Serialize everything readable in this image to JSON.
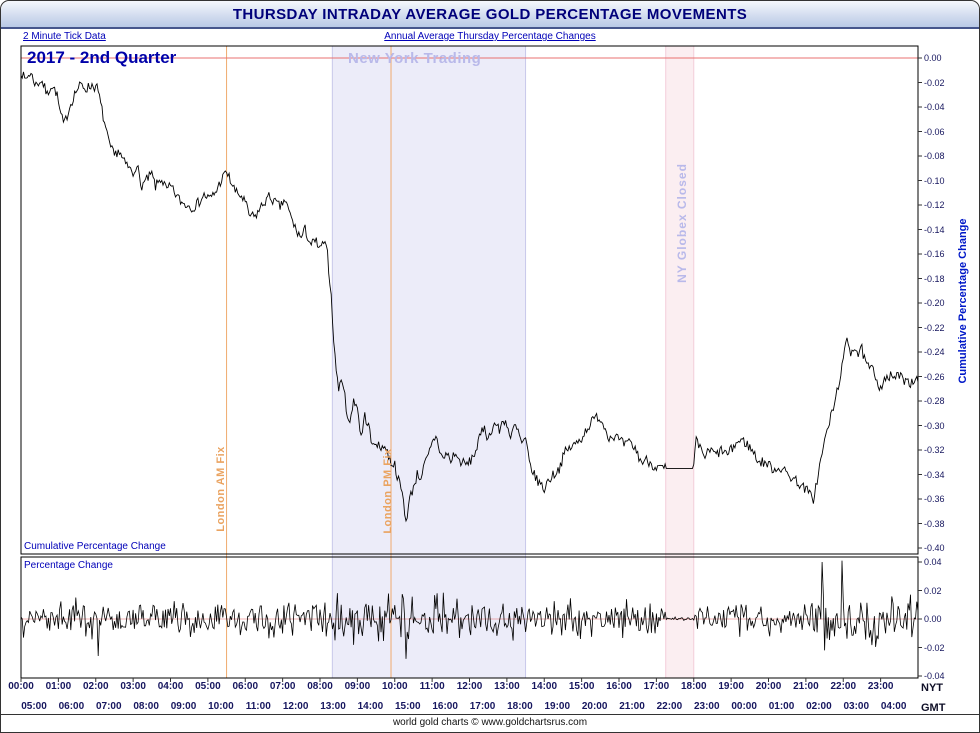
{
  "title": "THURSDAY INTRADAY AVERAGE GOLD PERCENTAGE MOVEMENTS",
  "header": {
    "left_note": "2 Minute Tick Data",
    "center_note": "Annual Average Thursday Percentage Changes"
  },
  "annotations": {
    "quarter_label": "2017 - 2nd Quarter",
    "ny_trading": "New York Trading",
    "globex_closed": "NY Globex Closed",
    "london_am": "London AM Fix",
    "london_pm": "London PM Fix",
    "main_panel_label": "Cumulative Percentage Change",
    "sub_panel_label": "Percentage Change",
    "right_axis_label": "Cumulative Percentage Change",
    "nyt": "NYT",
    "gmt": "GMT"
  },
  "footer": "world gold charts © www.goldchartsrus.com",
  "colors": {
    "title_text": "#00007a",
    "subtitle_text": "#0000b8",
    "axis_text": "#16165e",
    "series_line": "#000000",
    "zero_line": "#e87070",
    "ny_trading_band": "#ececf9",
    "ny_trading_edge": "#c8c8ea",
    "globex_band": "#fbeef1",
    "globex_edge": "#f3cdd9",
    "fix_line": "#efab6e",
    "annotation_lavender": "#b9b9ea",
    "annotation_orange": "#eaa360",
    "right_axis_label": "#0018c8",
    "quarter_label": "#0000a8",
    "panel_border": "#000000"
  },
  "chart_data": {
    "type": "line",
    "title": "THURSDAY INTRADAY AVERAGE GOLD PERCENTAGE MOVEMENTS",
    "subtitle": "Annual Average Thursday Percentage Changes",
    "sample": "2 Minute Tick Data",
    "period": "2017 - 2nd Quarter",
    "grid": false,
    "legend": "none",
    "x": {
      "hours": 24,
      "nyt_labels": [
        "00:00",
        "01:00",
        "02:00",
        "03:00",
        "04:00",
        "05:00",
        "06:00",
        "07:00",
        "08:00",
        "09:00",
        "10:00",
        "11:00",
        "12:00",
        "13:00",
        "14:00",
        "15:00",
        "16:00",
        "17:00",
        "18:00",
        "19:00",
        "20:00",
        "21:00",
        "22:00",
        "23:00"
      ],
      "gmt_labels": [
        "05:00",
        "06:00",
        "07:00",
        "08:00",
        "09:00",
        "10:00",
        "11:00",
        "12:00",
        "13:00",
        "14:00",
        "15:00",
        "16:00",
        "17:00",
        "18:00",
        "19:00",
        "20:00",
        "21:00",
        "22:00",
        "23:00",
        "00:00",
        "01:00",
        "02:00",
        "03:00",
        "04:00"
      ]
    },
    "events": {
      "ny_trading_band": [
        8.33,
        13.5
      ],
      "globex_closed_band": [
        17.25,
        18.0
      ],
      "london_am_fix": 5.5,
      "london_pm_fix": 9.9,
      "zero_line": 0.0
    },
    "panels": [
      {
        "name": "cumulative_percentage_change",
        "ylabel": "Cumulative Percentage Change",
        "ylim": [
          -0.4,
          0.0
        ],
        "ytick_step": 0.02,
        "yticks": [
          "0.00",
          "-0.02",
          "-0.04",
          "-0.06",
          "-0.08",
          "-0.10",
          "-0.12",
          "-0.14",
          "-0.16",
          "-0.18",
          "-0.20",
          "-0.22",
          "-0.24",
          "-0.26",
          "-0.28",
          "-0.30",
          "-0.32",
          "-0.34",
          "-0.36",
          "-0.38",
          "-0.40"
        ],
        "jitter_amplitude": 0.0042,
        "flat_segments": [
          [
            17.25,
            18.0
          ]
        ],
        "series_keypoints": [
          [
            0,
            -0.01
          ],
          [
            0.1,
            -0.018
          ],
          [
            0.25,
            -0.012
          ],
          [
            0.4,
            -0.022
          ],
          [
            0.55,
            -0.018
          ],
          [
            0.7,
            -0.03
          ],
          [
            0.8,
            -0.022
          ],
          [
            0.95,
            -0.028
          ],
          [
            1.05,
            -0.045
          ],
          [
            1.15,
            -0.055
          ],
          [
            1.3,
            -0.04
          ],
          [
            1.45,
            -0.028
          ],
          [
            1.6,
            -0.022
          ],
          [
            1.75,
            -0.025
          ],
          [
            1.9,
            -0.022
          ],
          [
            2.05,
            -0.025
          ],
          [
            2.2,
            -0.048
          ],
          [
            2.35,
            -0.07
          ],
          [
            2.5,
            -0.08
          ],
          [
            2.6,
            -0.075
          ],
          [
            2.75,
            -0.085
          ],
          [
            2.9,
            -0.09
          ],
          [
            3,
            -0.095
          ],
          [
            3.1,
            -0.085
          ],
          [
            3.2,
            -0.105
          ],
          [
            3.35,
            -0.1
          ],
          [
            3.5,
            -0.095
          ],
          [
            3.6,
            -0.105
          ],
          [
            3.75,
            -0.098
          ],
          [
            3.9,
            -0.108
          ],
          [
            4,
            -0.105
          ],
          [
            4.15,
            -0.112
          ],
          [
            4.3,
            -0.118
          ],
          [
            4.45,
            -0.12
          ],
          [
            4.6,
            -0.122
          ],
          [
            4.75,
            -0.118
          ],
          [
            4.9,
            -0.112
          ],
          [
            5.05,
            -0.115
          ],
          [
            5.2,
            -0.11
          ],
          [
            5.35,
            -0.1
          ],
          [
            5.5,
            -0.093
          ],
          [
            5.6,
            -0.1
          ],
          [
            5.75,
            -0.11
          ],
          [
            5.9,
            -0.113
          ],
          [
            6,
            -0.118
          ],
          [
            6.1,
            -0.128
          ],
          [
            6.25,
            -0.13
          ],
          [
            6.4,
            -0.123
          ],
          [
            6.5,
            -0.118
          ],
          [
            6.65,
            -0.113
          ],
          [
            6.8,
            -0.118
          ],
          [
            6.95,
            -0.122
          ],
          [
            7.05,
            -0.115
          ],
          [
            7.2,
            -0.128
          ],
          [
            7.35,
            -0.14
          ],
          [
            7.5,
            -0.147
          ],
          [
            7.6,
            -0.14
          ],
          [
            7.75,
            -0.152
          ],
          [
            7.9,
            -0.15
          ],
          [
            8,
            -0.157
          ],
          [
            8.1,
            -0.15
          ],
          [
            8.2,
            -0.16
          ],
          [
            8.3,
            -0.195
          ],
          [
            8.4,
            -0.245
          ],
          [
            8.5,
            -0.27
          ],
          [
            8.6,
            -0.262
          ],
          [
            8.7,
            -0.285
          ],
          [
            8.8,
            -0.3
          ],
          [
            8.9,
            -0.278
          ],
          [
            9,
            -0.285
          ],
          [
            9.1,
            -0.31
          ],
          [
            9.2,
            -0.292
          ],
          [
            9.3,
            -0.3
          ],
          [
            9.4,
            -0.318
          ],
          [
            9.5,
            -0.312
          ],
          [
            9.6,
            -0.32
          ],
          [
            9.7,
            -0.315
          ],
          [
            9.8,
            -0.322
          ],
          [
            9.9,
            -0.33
          ],
          [
            10,
            -0.332
          ],
          [
            10.1,
            -0.345
          ],
          [
            10.2,
            -0.355
          ],
          [
            10.3,
            -0.378
          ],
          [
            10.4,
            -0.36
          ],
          [
            10.5,
            -0.35
          ],
          [
            10.6,
            -0.34
          ],
          [
            10.7,
            -0.342
          ],
          [
            10.8,
            -0.332
          ],
          [
            10.9,
            -0.325
          ],
          [
            11,
            -0.315
          ],
          [
            11.1,
            -0.308
          ],
          [
            11.2,
            -0.32
          ],
          [
            11.3,
            -0.328
          ],
          [
            11.4,
            -0.322
          ],
          [
            11.5,
            -0.33
          ],
          [
            11.6,
            -0.322
          ],
          [
            11.7,
            -0.328
          ],
          [
            11.8,
            -0.33
          ],
          [
            11.9,
            -0.332
          ],
          [
            12,
            -0.33
          ],
          [
            12.15,
            -0.322
          ],
          [
            12.3,
            -0.308
          ],
          [
            12.4,
            -0.3
          ],
          [
            12.5,
            -0.312
          ],
          [
            12.6,
            -0.302
          ],
          [
            12.7,
            -0.298
          ],
          [
            12.8,
            -0.305
          ],
          [
            12.9,
            -0.295
          ],
          [
            13,
            -0.298
          ],
          [
            13.1,
            -0.312
          ],
          [
            13.2,
            -0.3
          ],
          [
            13.3,
            -0.305
          ],
          [
            13.4,
            -0.315
          ],
          [
            13.5,
            -0.312
          ],
          [
            13.6,
            -0.33
          ],
          [
            13.75,
            -0.342
          ],
          [
            13.9,
            -0.348
          ],
          [
            14,
            -0.352
          ],
          [
            14.1,
            -0.345
          ],
          [
            14.25,
            -0.34
          ],
          [
            14.4,
            -0.335
          ],
          [
            14.55,
            -0.322
          ],
          [
            14.7,
            -0.318
          ],
          [
            14.85,
            -0.315
          ],
          [
            15,
            -0.31
          ],
          [
            15.15,
            -0.302
          ],
          [
            15.3,
            -0.296
          ],
          [
            15.45,
            -0.292
          ],
          [
            15.6,
            -0.3
          ],
          [
            15.75,
            -0.31
          ],
          [
            15.9,
            -0.308
          ],
          [
            16,
            -0.312
          ],
          [
            16.15,
            -0.316
          ],
          [
            16.3,
            -0.314
          ],
          [
            16.45,
            -0.32
          ],
          [
            16.6,
            -0.33
          ],
          [
            16.75,
            -0.328
          ],
          [
            16.9,
            -0.332
          ],
          [
            17,
            -0.334
          ],
          [
            17.1,
            -0.335
          ],
          [
            17.25,
            -0.335
          ],
          [
            18,
            -0.335
          ],
          [
            18.05,
            -0.312
          ],
          [
            18.15,
            -0.318
          ],
          [
            18.3,
            -0.325
          ],
          [
            18.45,
            -0.32
          ],
          [
            18.6,
            -0.324
          ],
          [
            18.75,
            -0.32
          ],
          [
            18.9,
            -0.324
          ],
          [
            19,
            -0.32
          ],
          [
            19.15,
            -0.314
          ],
          [
            19.3,
            -0.312
          ],
          [
            19.45,
            -0.316
          ],
          [
            19.6,
            -0.322
          ],
          [
            19.75,
            -0.33
          ],
          [
            19.9,
            -0.33
          ],
          [
            20,
            -0.332
          ],
          [
            20.15,
            -0.336
          ],
          [
            20.3,
            -0.334
          ],
          [
            20.45,
            -0.338
          ],
          [
            20.6,
            -0.342
          ],
          [
            20.75,
            -0.345
          ],
          [
            20.9,
            -0.35
          ],
          [
            21,
            -0.352
          ],
          [
            21.1,
            -0.356
          ],
          [
            21.2,
            -0.36
          ],
          [
            21.3,
            -0.345
          ],
          [
            21.45,
            -0.32
          ],
          [
            21.6,
            -0.3
          ],
          [
            21.75,
            -0.285
          ],
          [
            21.9,
            -0.262
          ],
          [
            22,
            -0.248
          ],
          [
            22.1,
            -0.228
          ],
          [
            22.2,
            -0.24
          ],
          [
            22.3,
            -0.235
          ],
          [
            22.4,
            -0.242
          ],
          [
            22.5,
            -0.238
          ],
          [
            22.6,
            -0.25
          ],
          [
            22.7,
            -0.253
          ],
          [
            22.8,
            -0.255
          ],
          [
            22.9,
            -0.262
          ],
          [
            23,
            -0.27
          ],
          [
            23.1,
            -0.26
          ],
          [
            23.2,
            -0.264
          ],
          [
            23.3,
            -0.258
          ],
          [
            23.4,
            -0.262
          ],
          [
            23.5,
            -0.258
          ],
          [
            23.6,
            -0.264
          ],
          [
            23.7,
            -0.26
          ],
          [
            23.8,
            -0.266
          ],
          [
            23.9,
            -0.262
          ],
          [
            24,
            -0.264
          ]
        ]
      },
      {
        "name": "percentage_change",
        "ylabel": "Percentage Change",
        "ylim": [
          -0.04,
          0.04
        ],
        "ytick_step": 0.02,
        "yticks": [
          "0.04",
          "0.02",
          "0.00",
          "-0.02",
          "-0.04"
        ],
        "amplitude_envelope": [
          [
            0,
            2,
            0.011
          ],
          [
            2,
            8.33,
            0.0095
          ],
          [
            8.33,
            10.5,
            0.015
          ],
          [
            10.5,
            13.5,
            0.012
          ],
          [
            13.5,
            17.25,
            0.0105
          ],
          [
            17.25,
            18,
            0.0012
          ],
          [
            18,
            21,
            0.0095
          ],
          [
            21,
            23,
            0.014
          ],
          [
            23,
            24,
            0.0115
          ]
        ],
        "spikes": [
          [
            2.07,
            -0.026
          ],
          [
            10.3,
            -0.028
          ],
          [
            21.43,
            0.04
          ],
          [
            21.5,
            -0.022
          ],
          [
            21.97,
            0.041
          ]
        ]
      }
    ]
  }
}
